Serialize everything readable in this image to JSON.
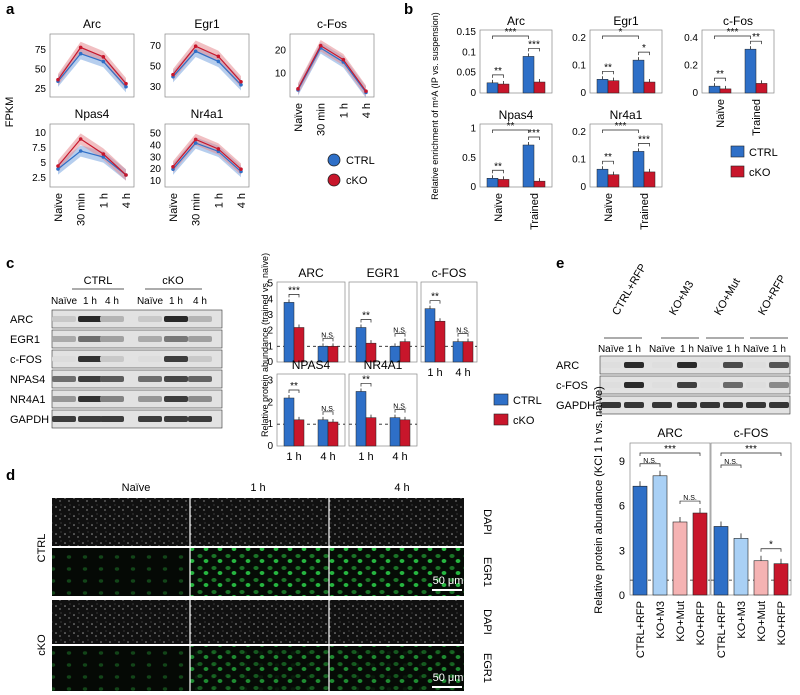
{
  "panels": {
    "a": "a",
    "b": "b",
    "c": "c",
    "d": "d",
    "e": "e"
  },
  "colors": {
    "ctrl": "#2e6fc7",
    "cko": "#c8162b",
    "ctrl_band": "#7aa6e0",
    "cko_band": "#e68a8f",
    "ko_m3": "#a9d0f5",
    "ko_mut": "#f5b3b3",
    "green": "#2bd44a"
  },
  "panel_a": {
    "ylabel": "FPKM",
    "x_ticks": [
      "Naïve",
      "30 min",
      "1 h",
      "4 h"
    ],
    "legend": [
      "CTRL",
      "cKO"
    ]
  },
  "panel_b": {
    "ylabel": "Relative enrichment of m⁶A (IP vs. suspension)",
    "x_ticks": [
      "Naïve",
      "Trained"
    ],
    "legend": [
      "CTRL",
      "cKO"
    ]
  },
  "panel_c": {
    "groups": [
      "CTRL",
      "cKO"
    ],
    "lanes": [
      "Naïve",
      "1 h",
      "4 h",
      "Naïve",
      "1 h",
      "4 h"
    ],
    "rows": [
      "ARC",
      "EGR1",
      "c-FOS",
      "NPAS4",
      "NR4A1",
      "GAPDH"
    ],
    "ylabel": "Relative protein abundance (trained vs. naïve)",
    "x_ticks": [
      "1 h",
      "4 h"
    ],
    "legend": [
      "CTRL",
      "cKO"
    ]
  },
  "panel_d": {
    "cols": [
      "Naïve",
      "1 h",
      "4 h"
    ],
    "rows": [
      "CTRL",
      "cKO"
    ],
    "stains": [
      "DAPI",
      "EGR1",
      "DAPI",
      "EGR1"
    ],
    "scalebar": "50 μm"
  },
  "panel_e": {
    "conditions": [
      "CTRL+RFP",
      "KO+M3",
      "KO+Mut",
      "KO+RFP"
    ],
    "lanes": [
      "Naïve",
      "1 h",
      "Naïve",
      "1 h",
      "Naïve",
      "1 h",
      "Naïve",
      "1 h"
    ],
    "rows": [
      "ARC",
      "c-FOS",
      "GAPDH"
    ],
    "ylabel": "Relative protein abundance (KCl 1 h vs. naïve)"
  },
  "chart_data": [
    {
      "type": "line",
      "panel": "a",
      "title": "Arc",
      "x": [
        "Naïve",
        "30 min",
        "1 h",
        "4 h"
      ],
      "yticks": [
        25,
        50,
        75
      ],
      "ylim": [
        15,
        95
      ],
      "series": [
        {
          "name": "CTRL",
          "values": [
            35,
            70,
            60,
            28
          ]
        },
        {
          "name": "cKO",
          "values": [
            37,
            78,
            66,
            32
          ]
        }
      ]
    },
    {
      "type": "line",
      "panel": "a",
      "title": "Egr1",
      "x": [
        "Naïve",
        "30 min",
        "1 h",
        "4 h"
      ],
      "yticks": [
        30,
        50,
        70
      ],
      "ylim": [
        20,
        82
      ],
      "series": [
        {
          "name": "CTRL",
          "values": [
            40,
            65,
            55,
            32
          ]
        },
        {
          "name": "cKO",
          "values": [
            42,
            70,
            60,
            35
          ]
        }
      ]
    },
    {
      "type": "line",
      "panel": "a",
      "title": "c-Fos",
      "x": [
        "Naïve",
        "30 min",
        "1 h",
        "4 h"
      ],
      "yticks": [
        10,
        20
      ],
      "ylim": [
        0,
        27
      ],
      "series": [
        {
          "name": "CTRL",
          "values": [
            3,
            21,
            15,
            2
          ]
        },
        {
          "name": "cKO",
          "values": [
            3.5,
            22,
            16,
            2.5
          ]
        }
      ]
    },
    {
      "type": "line",
      "panel": "a",
      "title": "Npas4",
      "x": [
        "Naïve",
        "30 min",
        "1 h",
        "4 h"
      ],
      "yticks": [
        2.5,
        5.0,
        7.5,
        10.0
      ],
      "ylim": [
        1,
        11.5
      ],
      "series": [
        {
          "name": "CTRL",
          "values": [
            4,
            7,
            6,
            3
          ]
        },
        {
          "name": "cKO",
          "values": [
            4.5,
            9,
            6.5,
            3
          ]
        }
      ]
    },
    {
      "type": "line",
      "panel": "a",
      "title": "Nr4a1",
      "x": [
        "Naïve",
        "30 min",
        "1 h",
        "4 h"
      ],
      "yticks": [
        10,
        20,
        30,
        40,
        50
      ],
      "ylim": [
        5,
        58
      ],
      "series": [
        {
          "name": "CTRL",
          "values": [
            20,
            42,
            35,
            18
          ]
        },
        {
          "name": "cKO",
          "values": [
            22,
            45,
            37,
            20
          ]
        }
      ]
    },
    {
      "type": "bar",
      "panel": "b",
      "title": "Arc",
      "categories": [
        "Naïve",
        "Trained"
      ],
      "yticks": [
        0,
        0.05,
        0.1,
        0.15
      ],
      "ylim": [
        0,
        0.155
      ],
      "series": [
        {
          "name": "CTRL",
          "values": [
            0.025,
            0.09
          ]
        },
        {
          "name": "cKO",
          "values": [
            0.022,
            0.027
          ]
        }
      ],
      "annotations": [
        "**",
        "***",
        "***"
      ]
    },
    {
      "type": "bar",
      "panel": "b",
      "title": "Egr1",
      "categories": [
        "Naïve",
        "Trained"
      ],
      "yticks": [
        0,
        0.1,
        0.2
      ],
      "ylim": [
        0,
        0.23
      ],
      "series": [
        {
          "name": "CTRL",
          "values": [
            0.05,
            0.12
          ]
        },
        {
          "name": "cKO",
          "values": [
            0.045,
            0.04
          ]
        }
      ],
      "annotations": [
        "**",
        "*",
        "*"
      ]
    },
    {
      "type": "bar",
      "panel": "b",
      "title": "c-Fos",
      "categories": [
        "Naïve",
        "Trained"
      ],
      "yticks": [
        0,
        0.2,
        0.4
      ],
      "ylim": [
        0,
        0.46
      ],
      "series": [
        {
          "name": "CTRL",
          "values": [
            0.05,
            0.32
          ]
        },
        {
          "name": "cKO",
          "values": [
            0.03,
            0.07
          ]
        }
      ],
      "annotations": [
        "**",
        "***",
        "**"
      ]
    },
    {
      "type": "bar",
      "panel": "b",
      "title": "Npas4",
      "categories": [
        "Naïve",
        "Trained"
      ],
      "yticks": [
        0,
        0.5,
        1
      ],
      "ylim": [
        0,
        1.08
      ],
      "series": [
        {
          "name": "CTRL",
          "values": [
            0.15,
            0.72
          ]
        },
        {
          "name": "cKO",
          "values": [
            0.13,
            0.1
          ]
        }
      ],
      "annotations": [
        "**",
        "**",
        "***"
      ]
    },
    {
      "type": "bar",
      "panel": "b",
      "title": "Nr4a1",
      "categories": [
        "Naïve",
        "Trained"
      ],
      "yticks": [
        0,
        0.1,
        0.2
      ],
      "ylim": [
        0,
        0.23
      ],
      "series": [
        {
          "name": "CTRL",
          "values": [
            0.065,
            0.13
          ]
        },
        {
          "name": "cKO",
          "values": [
            0.045,
            0.055
          ]
        }
      ],
      "annotations": [
        "**",
        "***",
        "***"
      ]
    },
    {
      "type": "bar",
      "panel": "c",
      "title": "ARC",
      "categories": [
        "1 h",
        "4 h"
      ],
      "yticks": [
        0,
        1,
        2,
        3,
        4,
        5
      ],
      "ylim": [
        0,
        5.1
      ],
      "reference_line": 1,
      "series": [
        {
          "name": "CTRL",
          "values": [
            3.8,
            1.0
          ]
        },
        {
          "name": "cKO",
          "values": [
            2.2,
            1.0
          ]
        }
      ],
      "annotations": [
        "***",
        "N.S."
      ]
    },
    {
      "type": "bar",
      "panel": "c",
      "title": "EGR1",
      "categories": [
        "1 h",
        "4 h"
      ],
      "yticks": [
        0,
        1,
        2,
        3,
        4,
        5
      ],
      "ylim": [
        0,
        5.1
      ],
      "reference_line": 1,
      "series": [
        {
          "name": "CTRL",
          "values": [
            2.2,
            1.0
          ]
        },
        {
          "name": "cKO",
          "values": [
            1.2,
            1.3
          ]
        }
      ],
      "annotations": [
        "**",
        "N.S."
      ]
    },
    {
      "type": "bar",
      "panel": "c",
      "title": "c-FOS",
      "categories": [
        "1 h",
        "4 h"
      ],
      "yticks": [
        0,
        1,
        2,
        3,
        4,
        5
      ],
      "ylim": [
        0,
        5.1
      ],
      "reference_line": 1,
      "series": [
        {
          "name": "CTRL",
          "values": [
            3.4,
            1.3
          ]
        },
        {
          "name": "cKO",
          "values": [
            2.6,
            1.3
          ]
        }
      ],
      "annotations": [
        "**",
        "N.S."
      ]
    },
    {
      "type": "bar",
      "panel": "c",
      "title": "NPAS4",
      "categories": [
        "1 h",
        "4 h"
      ],
      "yticks": [
        0,
        1,
        2,
        3
      ],
      "ylim": [
        0,
        3.3
      ],
      "reference_line": 1,
      "series": [
        {
          "name": "CTRL",
          "values": [
            2.2,
            1.2
          ]
        },
        {
          "name": "cKO",
          "values": [
            1.2,
            1.1
          ]
        }
      ],
      "annotations": [
        "**",
        "N.S."
      ]
    },
    {
      "type": "bar",
      "panel": "c",
      "title": "NR4A1",
      "categories": [
        "1 h",
        "4 h"
      ],
      "yticks": [
        0,
        1,
        2,
        3
      ],
      "ylim": [
        0,
        3.3
      ],
      "reference_line": 1,
      "series": [
        {
          "name": "CTRL",
          "values": [
            2.5,
            1.3
          ]
        },
        {
          "name": "cKO",
          "values": [
            1.3,
            1.2
          ]
        }
      ],
      "annotations": [
        "**",
        "N.S."
      ]
    },
    {
      "type": "bar",
      "panel": "e",
      "title": "ARC",
      "categories": [
        "CTRL+RFP",
        "KO+M3",
        "KO+Mut",
        "KO+RFP"
      ],
      "yticks": [
        0,
        3,
        6,
        9
      ],
      "ylim": [
        0,
        10.2
      ],
      "reference_line": 1,
      "values": [
        7.3,
        8.0,
        4.9,
        5.5
      ],
      "annotations": [
        "N.S.",
        "***",
        "N.S."
      ]
    },
    {
      "type": "bar",
      "panel": "e",
      "title": "c-FOS",
      "categories": [
        "CTRL+RFP",
        "KO+M3",
        "KO+Mut",
        "KO+RFP"
      ],
      "yticks": [
        0,
        3,
        6,
        9
      ],
      "ylim": [
        0,
        10.2
      ],
      "reference_line": 1,
      "values": [
        4.6,
        3.8,
        2.3,
        2.1
      ],
      "annotations": [
        "N.S.",
        "***",
        "*"
      ]
    }
  ]
}
